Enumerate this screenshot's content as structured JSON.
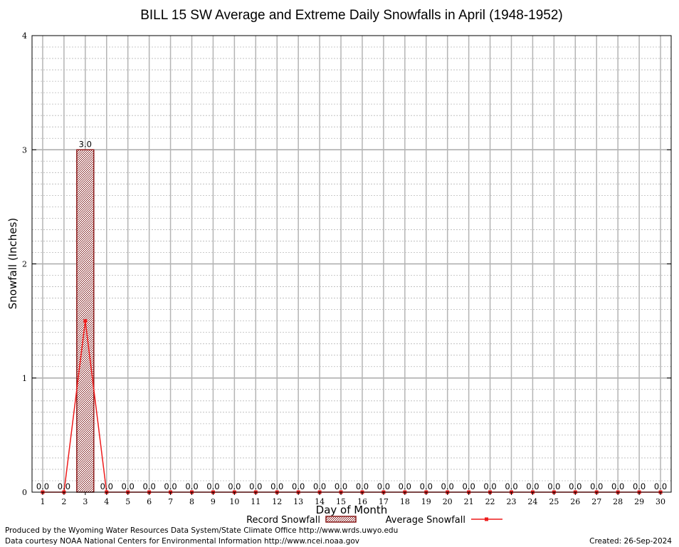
{
  "chart_data": {
    "type": "bar",
    "title": "BILL 15 SW Average and Extreme Daily Snowfalls in April (1948-1952)",
    "xlabel": "Day of Month",
    "ylabel": "Snowfall (Inches)",
    "ylim": [
      0,
      4
    ],
    "yticks": [
      "0",
      "1",
      "2",
      "3",
      "4"
    ],
    "categories": [
      "1",
      "2",
      "3",
      "4",
      "5",
      "6",
      "7",
      "8",
      "9",
      "10",
      "11",
      "12",
      "13",
      "14",
      "15",
      "16",
      "17",
      "18",
      "19",
      "20",
      "21",
      "22",
      "23",
      "24",
      "25",
      "26",
      "27",
      "28",
      "29",
      "30"
    ],
    "grid": true,
    "legend_position": "bottom",
    "series": [
      {
        "name": "Record Snowfall",
        "kind": "bar",
        "color": "#8b1a1a",
        "values": [
          0,
          0,
          3,
          0,
          0,
          0,
          0,
          0,
          0,
          0,
          0,
          0,
          0,
          0,
          0,
          0,
          0,
          0,
          0,
          0,
          0,
          0,
          0,
          0,
          0,
          0,
          0,
          0,
          0,
          0
        ],
        "labels": [
          "0.0",
          "0.0",
          "3.0",
          "0.0",
          "0.0",
          "0.0",
          "0.0",
          "0.0",
          "0.0",
          "0.0",
          "0.0",
          "0.0",
          "0.0",
          "0.0",
          "0.0",
          "0.0",
          "0.0",
          "0.0",
          "0.0",
          "0.0",
          "0.0",
          "0.0",
          "0.0",
          "0.0",
          "0.0",
          "0.0",
          "0.0",
          "0.0",
          "0.0",
          "0.0"
        ]
      },
      {
        "name": "Average Snowfall",
        "kind": "line",
        "color": "#ee1c1c",
        "values": [
          0,
          0,
          1.5,
          0,
          0,
          0,
          0,
          0,
          0,
          0,
          0,
          0,
          0,
          0,
          0,
          0,
          0,
          0,
          0,
          0,
          0,
          0,
          0,
          0,
          0,
          0,
          0,
          0,
          0,
          0
        ]
      }
    ]
  },
  "footer": {
    "produced_by": "Produced by the Wyoming Water Resources Data System/State Climate Office http://www.wrds.uwyo.edu",
    "data_courtesy": "Data courtesy NOAA National Centers for Environmental Information http://www.ncei.noaa.gov",
    "created": "Created: 26-Sep-2024"
  }
}
